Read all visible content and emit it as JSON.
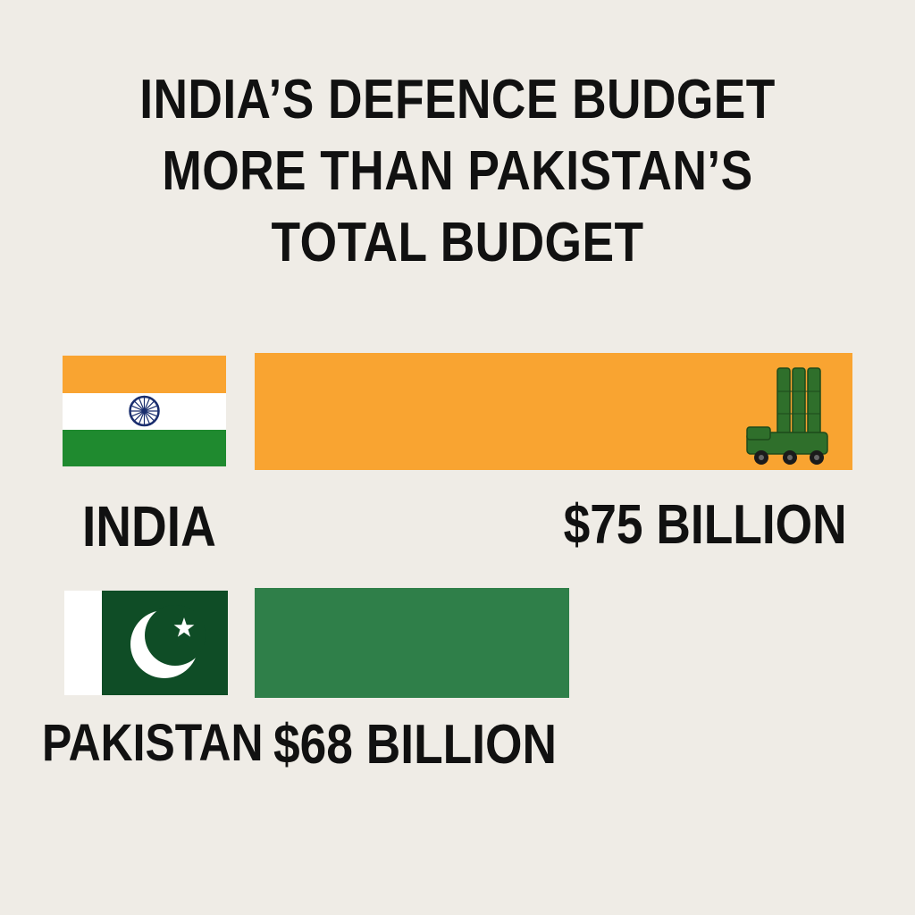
{
  "title_lines": [
    "INDIA’S DEFENCE BUDGET",
    "MORE THAN PAKISTAN’S",
    "TOTAL BUDGET"
  ],
  "colors": {
    "background": "#efece6",
    "saffron": "#f9a431",
    "pak_green": "#2f7f49",
    "flag_white": "#ffffff",
    "india_green": "#1f8a2f",
    "chakra_blue": "#1a2e6e",
    "pak_dark_green": "#0f4d26",
    "launcher_green": "#2f6f2b"
  },
  "icons": {
    "india_flag": "flag-of-india",
    "pakistan_flag": "flag-of-pakistan",
    "bar_decoration": "missile-launcher-truck-icon"
  },
  "chart_data": {
    "type": "bar",
    "orientation": "horizontal",
    "title": "INDIA’S DEFENCE BUDGET MORE THAN PAKISTAN’S TOTAL BUDGET",
    "categories": [
      "INDIA",
      "PAKISTAN"
    ],
    "values": [
      75,
      68
    ],
    "value_labels": [
      "$75 BILLION",
      "$68 BILLION"
    ],
    "units": "billion USD",
    "bar_colors": [
      "#f9a431",
      "#2f7f49"
    ],
    "grid": false,
    "legend": "none"
  }
}
